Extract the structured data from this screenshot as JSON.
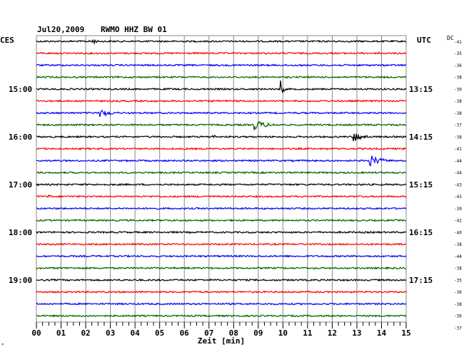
{
  "header": {
    "date": "Jul20,2009",
    "station": "RWMO HHZ BW 01",
    "left_tz": "CES",
    "right_tz": "UTC",
    "dc_label": "DC",
    "dc_top": "-41"
  },
  "chart_data": {
    "type": "seismogram",
    "xlabel": "Zeit [min]",
    "xlim": [
      0,
      15
    ],
    "x_ticks": [
      "00",
      "01",
      "02",
      "03",
      "04",
      "05",
      "06",
      "07",
      "08",
      "09",
      "10",
      "11",
      "12",
      "13",
      "14",
      "15"
    ],
    "trace_colors": [
      "#000000",
      "#ff0000",
      "#0000ff",
      "#006400"
    ],
    "dc_offsets": [
      "-35",
      "-36",
      "-38",
      "-39",
      "-38",
      "-38",
      "-37",
      "-38",
      "-41",
      "-44",
      "-44",
      "-43",
      "-43",
      "-39",
      "-42",
      "-40",
      "-38",
      "-44",
      "-38",
      "-35",
      "-36",
      "-38",
      "-36",
      "-37"
    ],
    "left_time_labels": [
      {
        "row": 4,
        "text": "15:00"
      },
      {
        "row": 8,
        "text": "16:00"
      },
      {
        "row": 12,
        "text": "17:00"
      },
      {
        "row": 16,
        "text": "18:00"
      },
      {
        "row": 20,
        "text": "19:00"
      }
    ],
    "right_time_labels": [
      {
        "row": 4,
        "text": "13:15"
      },
      {
        "row": 8,
        "text": "14:15"
      },
      {
        "row": 12,
        "text": "15:15"
      },
      {
        "row": 16,
        "text": "16:15"
      },
      {
        "row": 20,
        "text": "17:15"
      }
    ],
    "events": [
      {
        "row": 0,
        "t": 2.3,
        "amp": 4,
        "dur": 0.4
      },
      {
        "row": 1,
        "t": 13.9,
        "amp": 3,
        "dur": 0.2
      },
      {
        "row": 4,
        "t": 9.95,
        "amp": 14,
        "dur": 0.15
      },
      {
        "row": 6,
        "t": 2.6,
        "amp": 6,
        "dur": 1.0
      },
      {
        "row": 7,
        "t": 8.8,
        "amp": 8,
        "dur": 1.1
      },
      {
        "row": 8,
        "t": 7.2,
        "amp": 4,
        "dur": 0.2
      },
      {
        "row": 8,
        "t": 12.9,
        "amp": 7,
        "dur": 0.9
      },
      {
        "row": 10,
        "t": 13.5,
        "amp": 9,
        "dur": 1.0
      },
      {
        "row": 13,
        "t": 0.5,
        "amp": 3,
        "dur": 0.3
      }
    ]
  }
}
